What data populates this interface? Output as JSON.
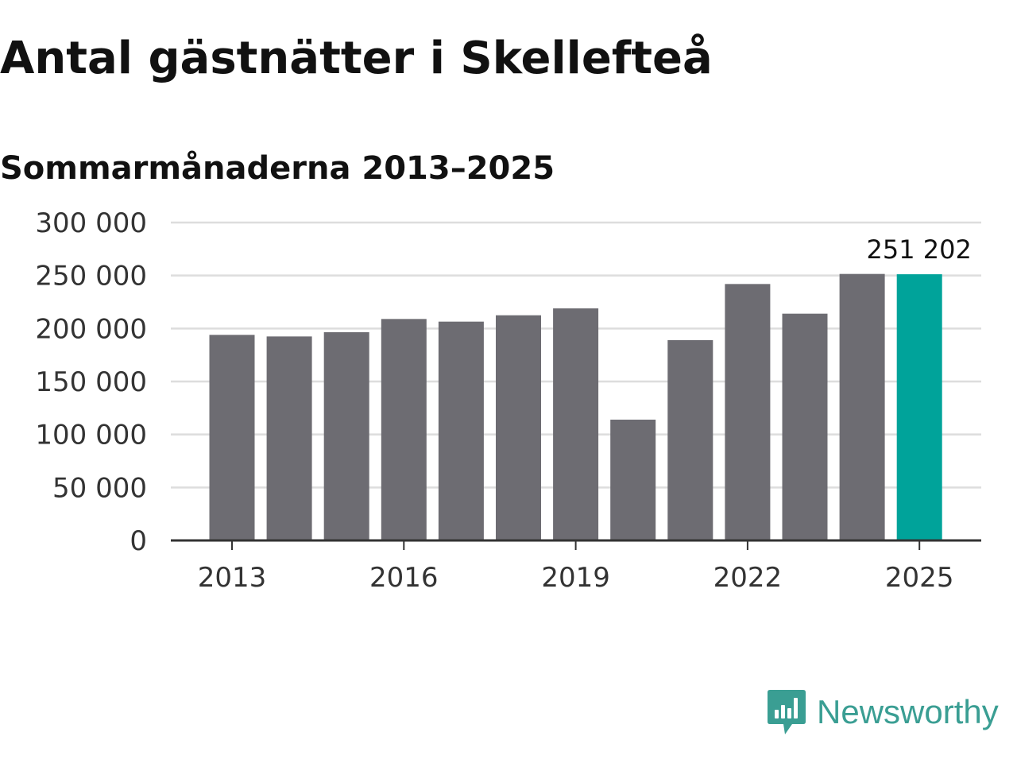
{
  "title": "Antal gästnätter i Skellefteå",
  "subtitle": "Sommarmånaderna 2013–2025",
  "brand": {
    "name": "Newsworthy",
    "icon": "newsworthy-logo-icon",
    "color": "#3a9e93"
  },
  "colors": {
    "bar": "#6d6c72",
    "highlight": "#00a39a",
    "grid": "#dddddd",
    "axis": "#333333"
  },
  "chart_data": {
    "type": "bar",
    "title": "",
    "xlabel": "",
    "ylabel": "",
    "categories": [
      "2013",
      "2014",
      "2015",
      "2016",
      "2017",
      "2018",
      "2019",
      "2020",
      "2021",
      "2022",
      "2023",
      "2024",
      "2025"
    ],
    "values": [
      194000,
      192500,
      196500,
      209000,
      206500,
      212500,
      219000,
      114000,
      189000,
      242000,
      214000,
      251500,
      251202
    ],
    "x_tick_labels": [
      "2013",
      "2016",
      "2019",
      "2022",
      "2025"
    ],
    "y_ticks": [
      0,
      50000,
      100000,
      150000,
      200000,
      250000,
      300000
    ],
    "y_tick_labels": [
      "0",
      "50 000",
      "100 000",
      "150 000",
      "200 000",
      "250 000",
      "300 000"
    ],
    "ylim": [
      0,
      300000
    ],
    "grid": true,
    "legend": "none",
    "highlight_index": 12,
    "data_labels": [
      {
        "index": 12,
        "text": "251 202"
      }
    ]
  }
}
